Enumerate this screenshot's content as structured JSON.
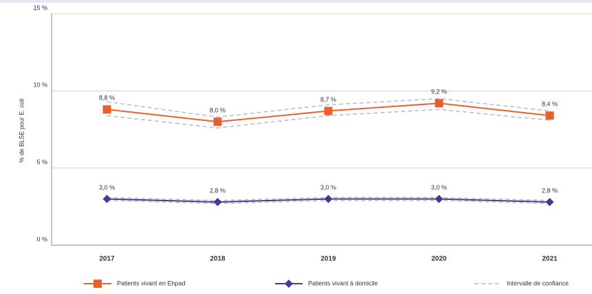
{
  "chart_data": {
    "type": "line",
    "y_label": "% de BLSE pour E. coli",
    "categories": [
      "2017",
      "2018",
      "2019",
      "2020",
      "2021"
    ],
    "ylim": [
      0,
      15
    ],
    "yticks": [
      {
        "value": 0,
        "label": "0 %"
      },
      {
        "value": 5,
        "label": "5 %"
      },
      {
        "value": 10,
        "label": "10 %"
      },
      {
        "value": 15,
        "label": "15 %"
      }
    ],
    "grid": true,
    "ci_name": "Intervalle de confiance",
    "ci_color": "#bbbbbb",
    "series": [
      {
        "name": "Patients vivant en Ehpad",
        "color": "#e8602c",
        "marker": "square",
        "values": [
          8.8,
          8.0,
          8.7,
          9.2,
          8.4
        ],
        "value_labels": [
          "8,8 %",
          "8,0 %",
          "8,7 %",
          "9,2 %",
          "8,4 %"
        ],
        "ci_low": [
          8.4,
          7.6,
          8.4,
          8.8,
          8.1
        ],
        "ci_high": [
          9.3,
          8.3,
          9.1,
          9.5,
          8.7
        ]
      },
      {
        "name": "Patients vivant à domicile",
        "color": "#3b3b98",
        "marker": "diamond",
        "values": [
          3.0,
          2.8,
          3.0,
          3.0,
          2.8
        ],
        "value_labels": [
          "3,0 %",
          "2,8 %",
          "3,0 %",
          "3,0 %",
          "2,8 %"
        ],
        "ci_low": [
          2.9,
          2.7,
          2.9,
          2.9,
          2.7
        ],
        "ci_high": [
          3.1,
          2.9,
          3.1,
          3.1,
          2.9
        ]
      }
    ],
    "legend": "bottom"
  }
}
